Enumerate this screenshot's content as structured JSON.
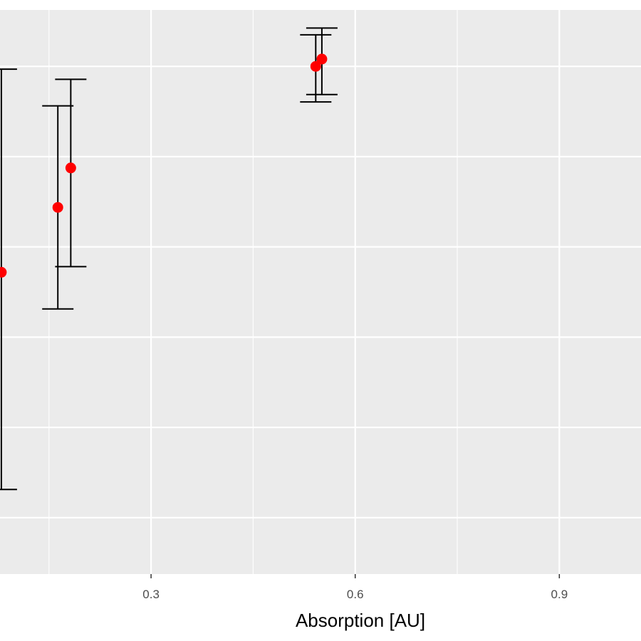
{
  "chart_data": {
    "type": "scatter",
    "title": "",
    "xlabel": "Absorption [AU]",
    "ylabel": "",
    "x_ticks": [
      {
        "value": 0.3,
        "label": "0.3"
      },
      {
        "value": 0.6,
        "label": "0.6"
      },
      {
        "value": 0.9,
        "label": "0.9"
      }
    ],
    "xlim": [
      0.078,
      1.02
    ],
    "ylim": [
      0,
      1
    ],
    "grid": true,
    "panel_color": "#ebebeb",
    "grid_color": "#ffffff",
    "point_color": "#ff0000",
    "errorbar_color": "#000000",
    "series": [
      {
        "points": [
          {
            "x": 0.08,
            "y": 0.535,
            "ymin": 0.15,
            "ymax": 0.895
          },
          {
            "x": 0.163,
            "y": 0.65,
            "ymin": 0.47,
            "ymax": 0.83
          },
          {
            "x": 0.182,
            "y": 0.72,
            "ymin": 0.545,
            "ymax": 0.877
          },
          {
            "x": 0.542,
            "y": 0.9,
            "ymin": 0.837,
            "ymax": 0.956
          },
          {
            "x": 0.551,
            "y": 0.913,
            "ymin": 0.85,
            "ymax": 0.968
          }
        ]
      }
    ]
  }
}
